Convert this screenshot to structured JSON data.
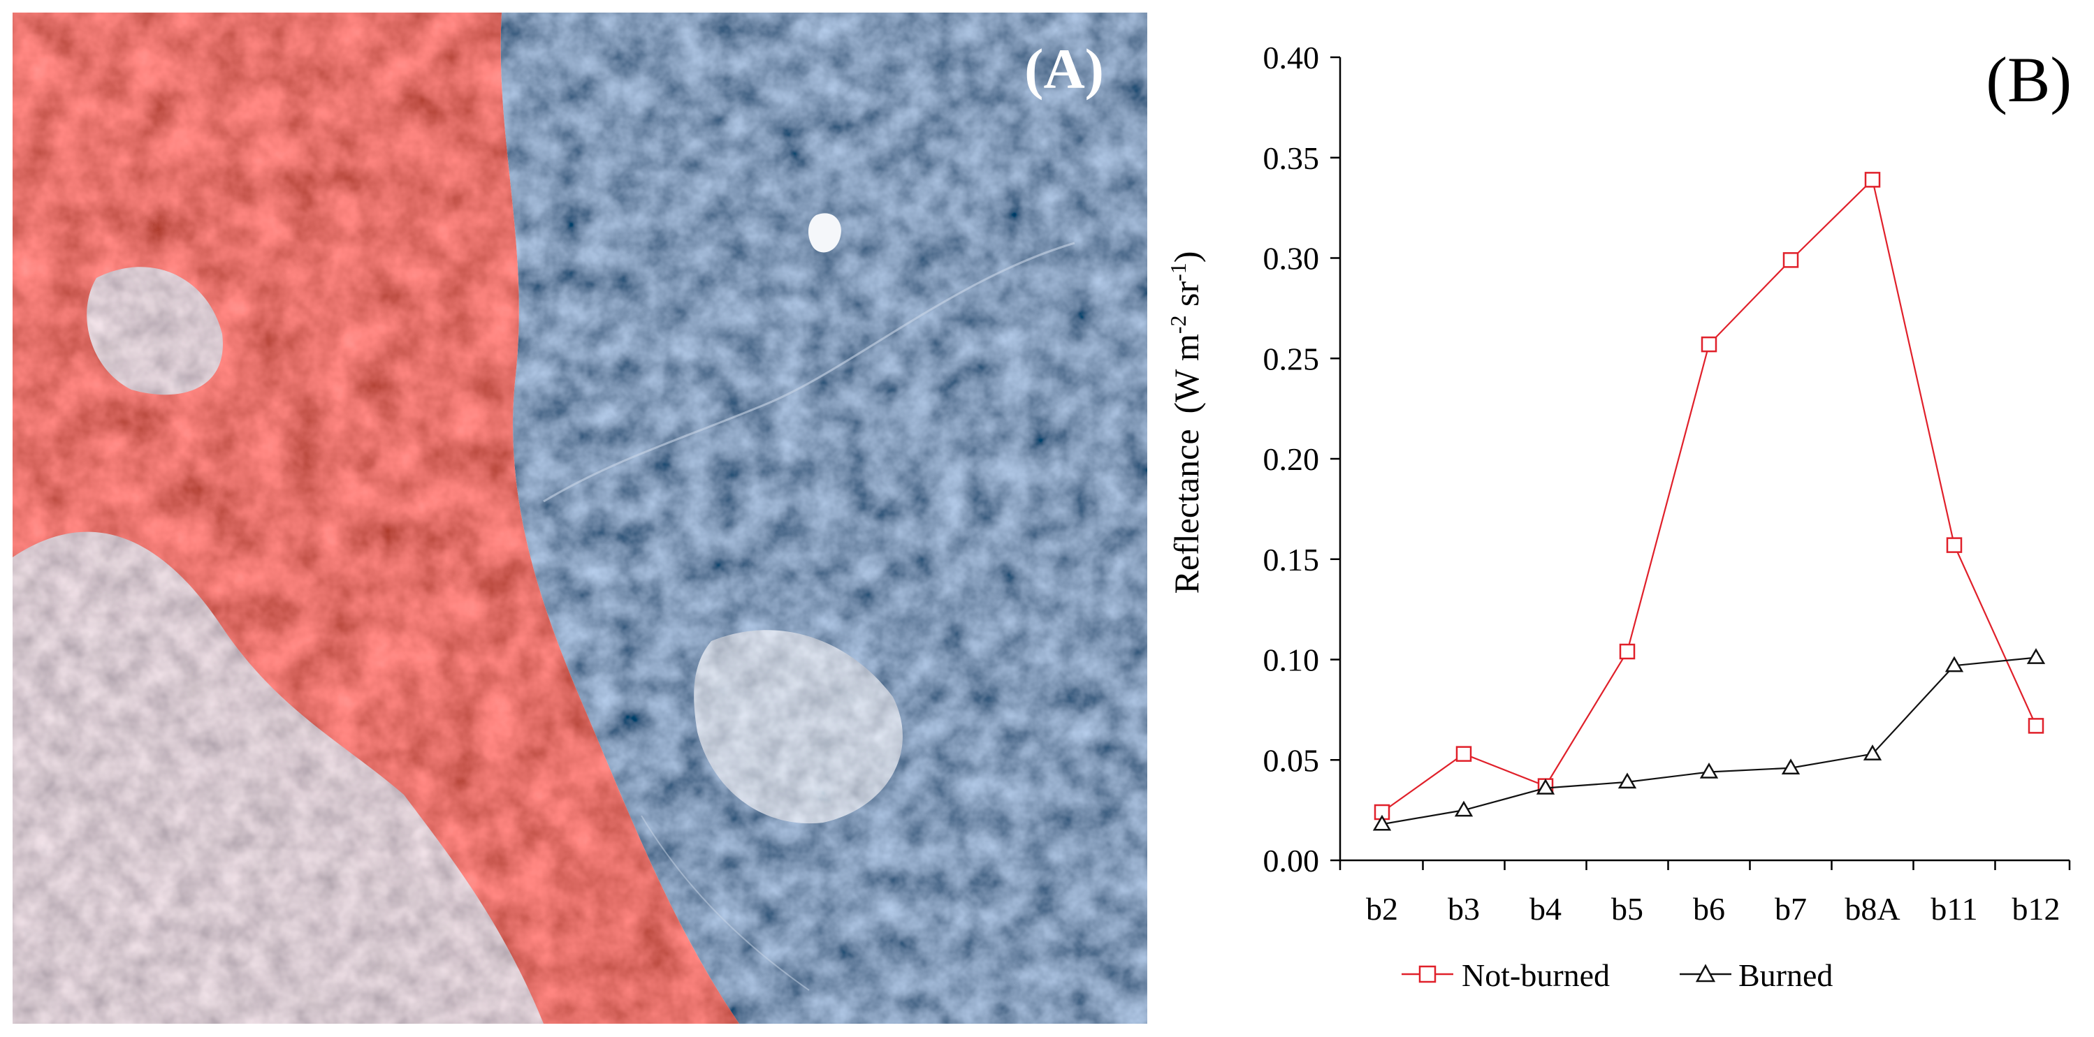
{
  "panel_a": {
    "label": "(A)",
    "image_description_icon": "false-color-satellite-image"
  },
  "panel_b": {
    "label": "(B)"
  },
  "colors": {
    "not_burned": "#e0202a",
    "burned": "#111111",
    "axis": "#000000"
  },
  "chart_data": {
    "type": "line",
    "title": "",
    "xlabel": "",
    "ylabel_main": "Reflectance",
    "ylabel_unit": "(W m",
    "ylabel_sup1": "-2",
    "ylabel_mid": " sr",
    "ylabel_sup2": "-1",
    "ylabel_end": ")",
    "categories": [
      "b2",
      "b3",
      "b4",
      "b5",
      "b6",
      "b7",
      "b8A",
      "b11",
      "b12"
    ],
    "ylim": [
      0,
      0.4
    ],
    "yticks": [
      "0.00",
      "0.05",
      "0.10",
      "0.15",
      "0.20",
      "0.25",
      "0.30",
      "0.35",
      "0.40"
    ],
    "ytick_values": [
      0,
      0.05,
      0.1,
      0.15,
      0.2,
      0.25,
      0.3,
      0.35,
      0.4
    ],
    "grid": false,
    "legend_position": "bottom",
    "series": [
      {
        "name": "Not-burned",
        "marker": "square",
        "values": [
          0.024,
          0.053,
          0.037,
          0.104,
          0.257,
          0.299,
          0.339,
          0.157,
          0.067
        ]
      },
      {
        "name": "Burned",
        "marker": "triangle",
        "values": [
          0.018,
          0.025,
          0.036,
          0.039,
          0.044,
          0.046,
          0.053,
          0.097,
          0.101
        ]
      }
    ]
  }
}
